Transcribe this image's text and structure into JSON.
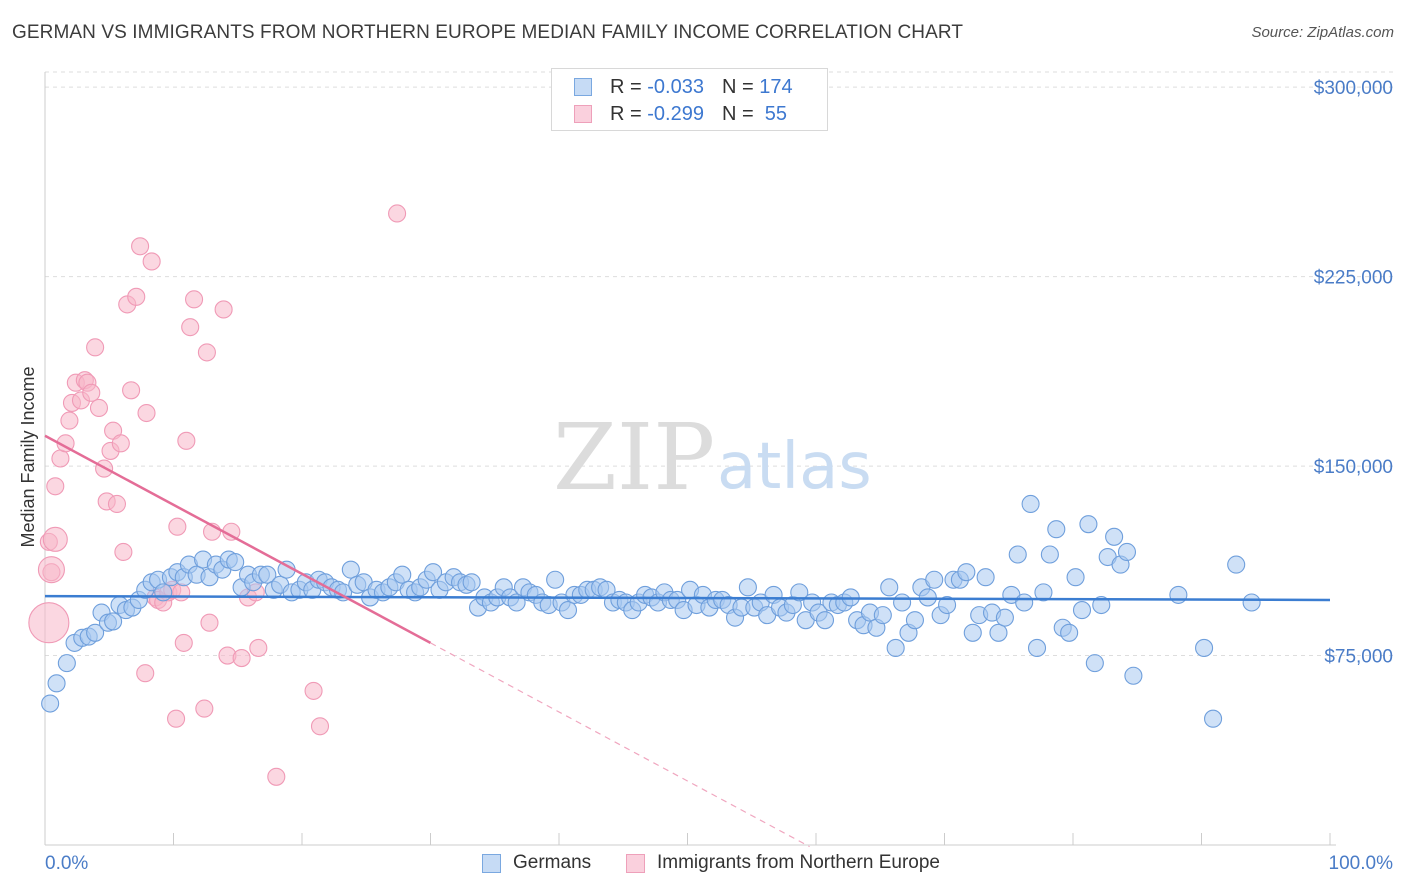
{
  "header": {
    "title": "GERMAN VS IMMIGRANTS FROM NORTHERN EUROPE MEDIAN FAMILY INCOME CORRELATION CHART",
    "source": "Source: ZipAtlas.com"
  },
  "watermark": {
    "zip": "ZIP",
    "atlas": "atlas"
  },
  "legend": {
    "rows": [
      {
        "r_label": "R = ",
        "r_value": "-0.033",
        "n_label": "N = ",
        "n_value": "174",
        "color": "#a8c8f0"
      },
      {
        "r_label": "R = ",
        "r_value": "-0.299",
        "n_label": "N = ",
        "n_value": " 55",
        "color": "#f7b6c8"
      }
    ]
  },
  "bottom_legend": {
    "germans": "Germans",
    "immigrants": "Immigrants from Northern Europe"
  },
  "colors": {
    "blue": "#4a86d4",
    "blue_fill": "#a8c8f0",
    "pink": "#e46d97",
    "pink_fill": "#f7b6c8",
    "tick_text": "#4a7cc7"
  },
  "chart_data": {
    "type": "scatter",
    "ylabel": "Median Family Income",
    "xlabel": "",
    "x_tick_labels": [
      "0.0%",
      "100.0%"
    ],
    "y_tick_labels": [
      "$75,000",
      "$150,000",
      "$225,000",
      "$300,000"
    ],
    "y_ticks": [
      75000,
      150000,
      225000,
      300000
    ],
    "xlim": [
      0,
      100
    ],
    "ylim": [
      0,
      306000
    ],
    "grid": "horizontal dashed",
    "series": [
      {
        "name": "Germans",
        "color": "#4a86d4",
        "trend": {
          "x0": 0,
          "y0": 98500,
          "x1": 100,
          "y1": 97000
        },
        "points": [
          [
            0.4,
            56000
          ],
          [
            0.9,
            64000
          ],
          [
            1.7,
            72000
          ],
          [
            2.3,
            80000
          ],
          [
            2.9,
            82000
          ],
          [
            3.4,
            82500
          ],
          [
            3.9,
            84000
          ],
          [
            4.4,
            92000
          ],
          [
            4.9,
            88000
          ],
          [
            5.3,
            88500
          ],
          [
            5.8,
            95000
          ],
          [
            6.3,
            93000
          ],
          [
            6.8,
            94000
          ],
          [
            7.3,
            97000
          ],
          [
            7.8,
            101000
          ],
          [
            8.3,
            104000
          ],
          [
            8.8,
            105000
          ],
          [
            9.2,
            100000
          ],
          [
            9.8,
            106000
          ],
          [
            10.3,
            108000
          ],
          [
            10.8,
            106000
          ],
          [
            11.2,
            111000
          ],
          [
            11.8,
            107000
          ],
          [
            12.3,
            113000
          ],
          [
            12.8,
            106000
          ],
          [
            13.3,
            111000
          ],
          [
            13.8,
            109000
          ],
          [
            14.3,
            113000
          ],
          [
            14.8,
            112000
          ],
          [
            15.3,
            102000
          ],
          [
            15.8,
            107000
          ],
          [
            16.2,
            104000
          ],
          [
            16.8,
            107000
          ],
          [
            17.3,
            107000
          ],
          [
            17.8,
            101000
          ],
          [
            18.3,
            103000
          ],
          [
            18.8,
            109000
          ],
          [
            19.2,
            100000
          ],
          [
            19.8,
            101000
          ],
          [
            20.3,
            104000
          ],
          [
            20.8,
            101000
          ],
          [
            21.3,
            105000
          ],
          [
            21.8,
            104000
          ],
          [
            22.3,
            102000
          ],
          [
            22.8,
            101000
          ],
          [
            23.2,
            100000
          ],
          [
            23.8,
            109000
          ],
          [
            24.3,
            103000
          ],
          [
            24.8,
            104000
          ],
          [
            25.3,
            98000
          ],
          [
            25.8,
            101000
          ],
          [
            26.3,
            100000
          ],
          [
            26.8,
            102000
          ],
          [
            27.3,
            104000
          ],
          [
            27.8,
            107000
          ],
          [
            28.3,
            101000
          ],
          [
            28.8,
            100000
          ],
          [
            29.2,
            102000
          ],
          [
            29.7,
            105000
          ],
          [
            30.2,
            108000
          ],
          [
            30.7,
            101000
          ],
          [
            31.2,
            104000
          ],
          [
            31.8,
            106000
          ],
          [
            32.3,
            104000
          ],
          [
            32.8,
            103000
          ],
          [
            33.2,
            104000
          ],
          [
            33.7,
            94000
          ],
          [
            34.2,
            98000
          ],
          [
            34.7,
            96000
          ],
          [
            35.2,
            98000
          ],
          [
            35.7,
            102000
          ],
          [
            36.2,
            98000
          ],
          [
            36.7,
            96000
          ],
          [
            37.2,
            102000
          ],
          [
            37.7,
            100000
          ],
          [
            38.2,
            99000
          ],
          [
            38.7,
            96000
          ],
          [
            39.2,
            95000
          ],
          [
            39.7,
            105000
          ],
          [
            40.2,
            96000
          ],
          [
            40.7,
            93000
          ],
          [
            41.2,
            99000
          ],
          [
            41.7,
            99000
          ],
          [
            42.2,
            101000
          ],
          [
            42.7,
            101000
          ],
          [
            43.2,
            102000
          ],
          [
            43.7,
            101000
          ],
          [
            44.2,
            96000
          ],
          [
            44.7,
            97000
          ],
          [
            45.2,
            96000
          ],
          [
            45.7,
            93000
          ],
          [
            46.2,
            96000
          ],
          [
            46.7,
            99000
          ],
          [
            47.2,
            98000
          ],
          [
            47.7,
            96000
          ],
          [
            48.2,
            100000
          ],
          [
            48.7,
            97000
          ],
          [
            49.2,
            97000
          ],
          [
            49.7,
            93000
          ],
          [
            50.2,
            101000
          ],
          [
            50.7,
            95000
          ],
          [
            51.2,
            99000
          ],
          [
            51.7,
            94000
          ],
          [
            52.2,
            97000
          ],
          [
            52.7,
            97000
          ],
          [
            53.2,
            95000
          ],
          [
            53.7,
            90000
          ],
          [
            54.2,
            94000
          ],
          [
            54.7,
            102000
          ],
          [
            55.2,
            94000
          ],
          [
            55.7,
            96000
          ],
          [
            56.2,
            91000
          ],
          [
            56.7,
            99000
          ],
          [
            57.2,
            94000
          ],
          [
            57.7,
            92000
          ],
          [
            58.2,
            95000
          ],
          [
            58.7,
            100000
          ],
          [
            59.2,
            89000
          ],
          [
            59.7,
            96000
          ],
          [
            60.2,
            92000
          ],
          [
            60.7,
            89000
          ],
          [
            61.2,
            96000
          ],
          [
            61.7,
            95000
          ],
          [
            62.2,
            96000
          ],
          [
            62.7,
            98000
          ],
          [
            63.2,
            89000
          ],
          [
            63.7,
            87000
          ],
          [
            64.2,
            92000
          ],
          [
            64.7,
            86000
          ],
          [
            65.2,
            91000
          ],
          [
            65.7,
            102000
          ],
          [
            66.2,
            78000
          ],
          [
            66.7,
            96000
          ],
          [
            67.2,
            84000
          ],
          [
            67.7,
            89000
          ],
          [
            68.2,
            102000
          ],
          [
            68.7,
            98000
          ],
          [
            69.2,
            105000
          ],
          [
            69.7,
            91000
          ],
          [
            70.2,
            95000
          ],
          [
            70.7,
            105000
          ],
          [
            71.2,
            105000
          ],
          [
            71.7,
            108000
          ],
          [
            72.2,
            84000
          ],
          [
            72.7,
            91000
          ],
          [
            73.2,
            106000
          ],
          [
            73.7,
            92000
          ],
          [
            74.2,
            84000
          ],
          [
            74.7,
            90000
          ],
          [
            75.2,
            99000
          ],
          [
            75.7,
            115000
          ],
          [
            76.2,
            96000
          ],
          [
            76.7,
            135000
          ],
          [
            77.2,
            78000
          ],
          [
            77.7,
            100000
          ],
          [
            78.2,
            115000
          ],
          [
            78.7,
            125000
          ],
          [
            79.2,
            86000
          ],
          [
            79.7,
            84000
          ],
          [
            80.2,
            106000
          ],
          [
            80.7,
            93000
          ],
          [
            81.2,
            127000
          ],
          [
            81.7,
            72000
          ],
          [
            82.2,
            95000
          ],
          [
            82.7,
            114000
          ],
          [
            83.2,
            122000
          ],
          [
            83.7,
            111000
          ],
          [
            84.2,
            116000
          ],
          [
            84.7,
            67000
          ],
          [
            88.2,
            99000
          ],
          [
            90.2,
            78000
          ],
          [
            90.9,
            50000
          ],
          [
            92.7,
            111000
          ],
          [
            93.9,
            96000
          ]
        ]
      },
      {
        "name": "Immigrants from Northern Europe",
        "color": "#e46d97",
        "trend": {
          "x0": 0,
          "y0": 162000,
          "x1": 30,
          "y1": 80000,
          "dashed_to_x": 59.5
        },
        "points": [
          [
            0.3,
            120000
          ],
          [
            0.5,
            108000
          ],
          [
            0.8,
            142000
          ],
          [
            1.2,
            153000
          ],
          [
            1.6,
            159000
          ],
          [
            1.9,
            168000
          ],
          [
            2.1,
            175000
          ],
          [
            2.4,
            183000
          ],
          [
            2.8,
            176000
          ],
          [
            3.1,
            184000
          ],
          [
            3.3,
            183000
          ],
          [
            3.6,
            179000
          ],
          [
            3.9,
            197000
          ],
          [
            4.2,
            173000
          ],
          [
            4.6,
            149000
          ],
          [
            4.8,
            136000
          ],
          [
            5.1,
            156000
          ],
          [
            5.3,
            164000
          ],
          [
            5.6,
            135000
          ],
          [
            5.9,
            159000
          ],
          [
            6.1,
            116000
          ],
          [
            6.4,
            214000
          ],
          [
            6.7,
            180000
          ],
          [
            7.1,
            217000
          ],
          [
            7.4,
            237000
          ],
          [
            7.8,
            68000
          ],
          [
            7.9,
            171000
          ],
          [
            8.3,
            231000
          ],
          [
            8.6,
            98000
          ],
          [
            8.8,
            97000
          ],
          [
            9.2,
            96000
          ],
          [
            9.6,
            100000
          ],
          [
            9.9,
            101000
          ],
          [
            10.2,
            50000
          ],
          [
            10.3,
            126000
          ],
          [
            10.6,
            100000
          ],
          [
            10.8,
            80000
          ],
          [
            11.0,
            160000
          ],
          [
            11.3,
            205000
          ],
          [
            11.6,
            216000
          ],
          [
            12.4,
            54000
          ],
          [
            12.6,
            195000
          ],
          [
            12.8,
            88000
          ],
          [
            13.0,
            124000
          ],
          [
            13.9,
            212000
          ],
          [
            14.2,
            75000
          ],
          [
            14.5,
            124000
          ],
          [
            15.3,
            74000
          ],
          [
            15.8,
            98000
          ],
          [
            16.4,
            100000
          ],
          [
            16.6,
            78000
          ],
          [
            18.0,
            27000
          ],
          [
            20.9,
            61000
          ],
          [
            21.4,
            47000
          ],
          [
            27.4,
            250000
          ]
        ]
      }
    ]
  }
}
